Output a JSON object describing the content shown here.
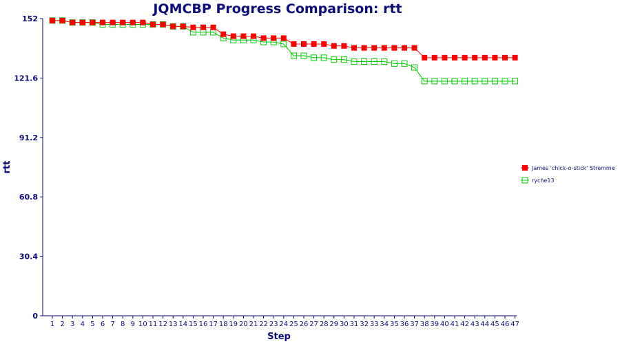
{
  "chart_data": {
    "type": "line",
    "title": "JQMCBP Progress Comparison: rtt",
    "xlabel": "Step",
    "ylabel": "rtt",
    "ylim": [
      0,
      152
    ],
    "yticks": [
      "0",
      "30.4",
      "60.8",
      "91.2",
      "121.6",
      "152"
    ],
    "ytick_values": [
      0,
      30.4,
      60.8,
      91.2,
      121.6,
      152
    ],
    "x": [
      1,
      2,
      3,
      4,
      5,
      6,
      7,
      8,
      9,
      10,
      11,
      12,
      13,
      14,
      15,
      16,
      17,
      18,
      19,
      20,
      21,
      22,
      23,
      24,
      25,
      26,
      27,
      28,
      29,
      30,
      31,
      32,
      33,
      34,
      35,
      36,
      37,
      38,
      39,
      40,
      41,
      42,
      43,
      44,
      45,
      46,
      47
    ],
    "grid": false,
    "legend_position": "right",
    "series": [
      {
        "name": "James 'chick-o-stick' Stremme",
        "color": "#ff0000",
        "marker": "filled-square",
        "values": [
          151,
          151,
          150,
          150,
          150,
          150,
          150,
          150,
          150,
          150,
          149,
          149,
          148,
          148,
          147.5,
          147.5,
          147.5,
          144,
          143,
          143,
          143,
          142,
          142,
          142,
          139,
          139,
          139,
          139,
          138,
          138,
          137,
          137,
          137,
          137,
          137,
          137,
          137,
          132,
          132,
          132,
          132,
          132,
          132,
          132,
          132,
          132,
          132
        ]
      },
      {
        "name": "ryche13",
        "color": "#00cc00",
        "marker": "hollow-square",
        "values": [
          151,
          151,
          150,
          150,
          150,
          149,
          149,
          149,
          149,
          149,
          149,
          149,
          148,
          148,
          145,
          145,
          145,
          142,
          141,
          141,
          141,
          140,
          140,
          139,
          133,
          133,
          132,
          132,
          131,
          131,
          130,
          130,
          130,
          130,
          129,
          129,
          127,
          120,
          120,
          120,
          120,
          120,
          120,
          120,
          120,
          120,
          120
        ]
      }
    ]
  }
}
